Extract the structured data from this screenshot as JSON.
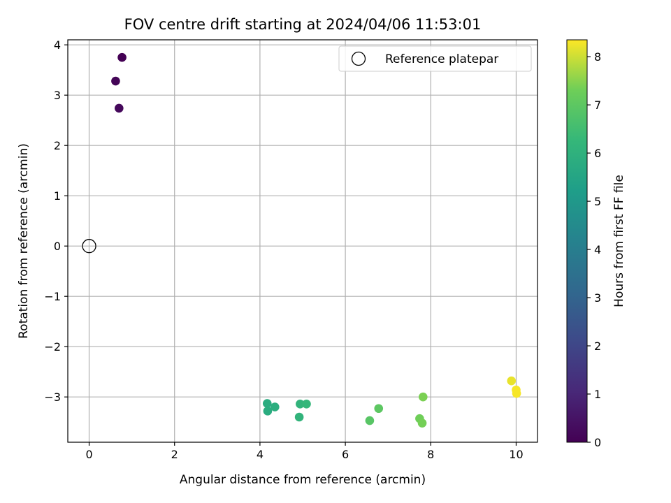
{
  "chart_data": {
    "type": "scatter",
    "title": "FOV centre drift starting at 2024/04/06 11:53:01",
    "xlabel": "Angular distance from reference (arcmin)",
    "ylabel": "Rotation from reference (arcmin)",
    "xlim": [
      -0.5,
      10.5
    ],
    "ylim": [
      -3.9,
      4.1
    ],
    "xticks": [
      0,
      2,
      4,
      6,
      8,
      10
    ],
    "yticks": [
      -3,
      -2,
      -1,
      0,
      1,
      2,
      3,
      4
    ],
    "grid": true,
    "legend": {
      "placement": "top-right",
      "entries": [
        "Reference platepar"
      ]
    },
    "reference_point": {
      "name": "Reference platepar",
      "x": 0,
      "y": 0
    },
    "colorbar": {
      "label": "Hours from first FF file",
      "colormap": "viridis",
      "range": [
        0,
        8.35
      ],
      "ticks": [
        0,
        1,
        2,
        3,
        4,
        5,
        6,
        7,
        8
      ]
    },
    "points": [
      {
        "x": 0.77,
        "y": 3.75,
        "hours": 0.0
      },
      {
        "x": 0.62,
        "y": 3.28,
        "hours": 0.1
      },
      {
        "x": 0.7,
        "y": 2.74,
        "hours": 0.2
      },
      {
        "x": 4.17,
        "y": -3.13,
        "hours": 5.8
      },
      {
        "x": 4.18,
        "y": -3.28,
        "hours": 5.8
      },
      {
        "x": 4.35,
        "y": -3.2,
        "hours": 5.9
      },
      {
        "x": 4.92,
        "y": -3.4,
        "hours": 6.1
      },
      {
        "x": 4.94,
        "y": -3.14,
        "hours": 6.1
      },
      {
        "x": 5.09,
        "y": -3.14,
        "hours": 6.2
      },
      {
        "x": 6.57,
        "y": -3.47,
        "hours": 6.9
      },
      {
        "x": 6.78,
        "y": -3.23,
        "hours": 7.0
      },
      {
        "x": 7.74,
        "y": -3.43,
        "hours": 7.3
      },
      {
        "x": 7.8,
        "y": -3.52,
        "hours": 7.35
      },
      {
        "x": 7.82,
        "y": -3.0,
        "hours": 7.4
      },
      {
        "x": 9.89,
        "y": -2.68,
        "hours": 8.2
      },
      {
        "x": 10.0,
        "y": -2.86,
        "hours": 8.3
      },
      {
        "x": 10.01,
        "y": -2.93,
        "hours": 8.3
      }
    ]
  }
}
